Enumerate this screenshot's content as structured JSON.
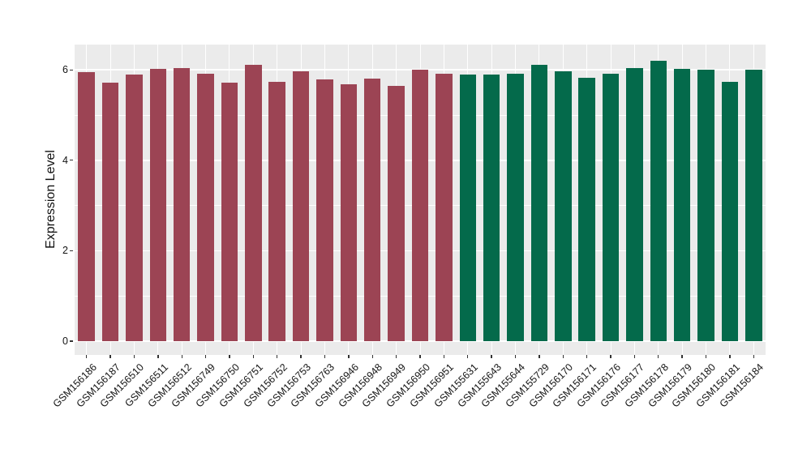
{
  "chart_data": {
    "type": "bar",
    "title": "",
    "xlabel": "",
    "ylabel": "Expression Level",
    "y_ticks": [
      0,
      2,
      4,
      6
    ],
    "y_minor_ticks": [
      1,
      3,
      5
    ],
    "ylim": [
      -0.31,
      6.55
    ],
    "grid": "white major + minor horizontal lines and vertical line at each bar center on gray panel",
    "legend_position": "none",
    "panel_background": "#EBEBEB",
    "grid_color": "#FFFFFF",
    "tick_mark_color": "#333333",
    "text_color": "#141414",
    "categories": [
      "GSM156186",
      "GSM156187",
      "GSM156510",
      "GSM156511",
      "GSM156512",
      "GSM156749",
      "GSM156750",
      "GSM156751",
      "GSM156752",
      "GSM156753",
      "GSM156763",
      "GSM156946",
      "GSM156948",
      "GSM156949",
      "GSM156950",
      "GSM156951",
      "GSM155631",
      "GSM155643",
      "GSM155644",
      "GSM155729",
      "GSM156170",
      "GSM156171",
      "GSM156176",
      "GSM156177",
      "GSM156178",
      "GSM156179",
      "GSM156180",
      "GSM156181",
      "GSM156184"
    ],
    "values": [
      5.95,
      5.71,
      5.89,
      6.02,
      6.04,
      5.92,
      5.71,
      6.11,
      5.73,
      5.97,
      5.78,
      5.69,
      5.81,
      5.64,
      6.01,
      5.91,
      5.9,
      5.9,
      5.91,
      6.12,
      5.97,
      5.82,
      5.91,
      6.04,
      6.2,
      6.02,
      6.0,
      5.74,
      6.0
    ],
    "groups": [
      {
        "color": "#9C4454",
        "count": 16
      },
      {
        "color": "#046A4B",
        "count": 13
      }
    ]
  }
}
